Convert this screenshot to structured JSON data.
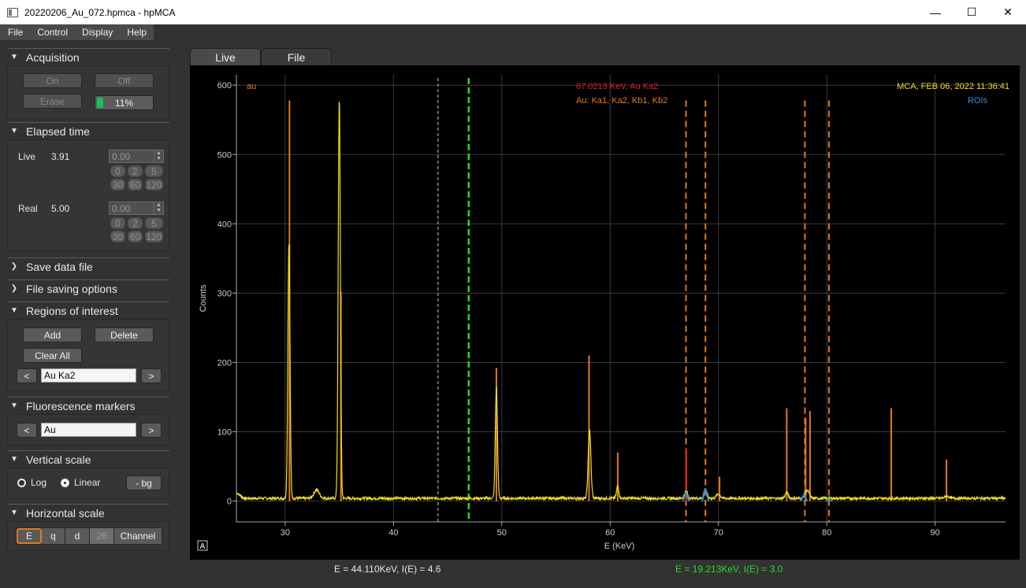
{
  "window": {
    "title": "20220206_Au_072.hpmca - hpMCA",
    "controls": {
      "minimize": "—",
      "maximize": "☐",
      "close": "✕"
    }
  },
  "menu": [
    "File",
    "Control",
    "Display",
    "Help"
  ],
  "acquisition": {
    "header": "Acquisition",
    "on_label": "On",
    "off_label": "Off",
    "erase_label": "Erase",
    "progress_text": "11%",
    "progress_fraction": 0.11
  },
  "elapsed": {
    "header": "Elapsed time",
    "live_label": "Live",
    "live_value": "3.91",
    "live_preset": "0.00",
    "real_label": "Real",
    "real_value": "5.00",
    "real_preset": "0.00",
    "presets_row1": [
      "0",
      "2",
      "5"
    ],
    "presets_row2": [
      "30",
      "60",
      "120"
    ]
  },
  "save_data": {
    "header": "Save data file"
  },
  "file_saving": {
    "header": "File saving options"
  },
  "roi": {
    "header": "Regions of interest",
    "add_label": "Add",
    "delete_label": "Delete",
    "clear_label": "Clear All",
    "prev": "<",
    "next": ">",
    "current": "Au Ka2"
  },
  "fluorescence": {
    "header": "Fluorescence markers",
    "prev": "<",
    "next": ">",
    "element": "Au"
  },
  "vscale": {
    "header": "Vertical scale",
    "log_label": "Log",
    "linear_label": "Linear",
    "bg_label": "- bg",
    "selected": "Linear"
  },
  "hscale": {
    "header": "Horizontal scale",
    "options": [
      "E",
      "q",
      "d",
      "2θ",
      "Channel"
    ],
    "selected": "E"
  },
  "tabs": [
    "Live",
    "File"
  ],
  "active_tab": "Live",
  "plot": {
    "top_left_label": "au",
    "marker_energy_label": "67.0213 KeV, Au Ka2",
    "marker_lines_label": "Au: Ka1, Ka2, Kb1, Kb2",
    "timestamp": "MCA, FEB 06, 2022 11:36:41",
    "rois_label": "ROIs",
    "auto_label": "A",
    "colors": {
      "spectrum": "#f0e020",
      "bars": "#e07b20",
      "cursor_green": "#22dd22",
      "cursor_gray": "#888888",
      "marker_red": "#dd2020",
      "roi": "#2a8ee0"
    }
  },
  "chart_data": {
    "type": "line",
    "xlabel": "E (KeV)",
    "ylabel": "Counts",
    "xlim": [
      25.5,
      96.5
    ],
    "ylim": [
      -30,
      615
    ],
    "x_ticks": [
      30,
      40,
      50,
      60,
      70,
      80,
      90
    ],
    "y_ticks": [
      0,
      100,
      200,
      300,
      400,
      500,
      600
    ],
    "grid": true,
    "baseline": 2,
    "peaks": [
      {
        "x": 30.35,
        "y": 370,
        "w": 0.14
      },
      {
        "x": 32.9,
        "y": 12,
        "w": 0.35
      },
      {
        "x": 35.0,
        "y": 578,
        "w": 0.14
      },
      {
        "x": 49.5,
        "y": 160,
        "w": 0.14
      },
      {
        "x": 58.1,
        "y": 100,
        "w": 0.17
      },
      {
        "x": 60.7,
        "y": 18,
        "w": 0.15
      },
      {
        "x": 67.0,
        "y": 10,
        "w": 0.2
      },
      {
        "x": 68.8,
        "y": 14,
        "w": 0.2
      },
      {
        "x": 70.0,
        "y": 6,
        "w": 0.25
      },
      {
        "x": 76.3,
        "y": 8,
        "w": 0.2
      },
      {
        "x": 78.2,
        "y": 12,
        "w": 0.25
      },
      {
        "x": 91.1,
        "y": 3,
        "w": 0.3
      }
    ],
    "bars": [
      {
        "x": 30.4,
        "y": 578
      },
      {
        "x": 35.15,
        "y": 302
      },
      {
        "x": 49.5,
        "y": 192
      },
      {
        "x": 58.05,
        "y": 210
      },
      {
        "x": 60.7,
        "y": 70
      },
      {
        "x": 70.1,
        "y": 35
      },
      {
        "x": 76.3,
        "y": 134
      },
      {
        "x": 78.05,
        "y": 120
      },
      {
        "x": 78.45,
        "y": 130
      },
      {
        "x": 85.95,
        "y": 134
      },
      {
        "x": 91.05,
        "y": 60
      }
    ],
    "fluorescence_markers": [
      67.0,
      68.8,
      77.98,
      80.2
    ],
    "roi_markers": [
      {
        "x": 67.0,
        "y": 12
      },
      {
        "x": 68.8,
        "y": 18
      },
      {
        "x": 77.9,
        "y": 10
      },
      {
        "x": 80.2,
        "y": 3
      }
    ],
    "red_marker": {
      "x": 67.02,
      "y": 75
    },
    "cursor_green_x": 46.95,
    "cursor_gray_x": 44.11
  },
  "status": {
    "left": "E = 44.110KeV,  I(E) = 4.6",
    "right": "E = 19.213KeV,  I(E) = 3.0"
  }
}
